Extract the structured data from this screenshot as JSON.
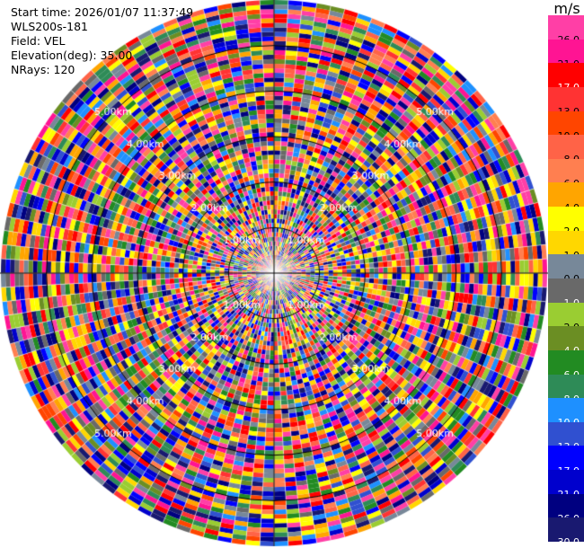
{
  "info": {
    "start_time": "Start time: 2026/01/07 11:37:49",
    "instrument": "WLS200s-181",
    "field": "Field: VEL",
    "elevation": "Elevation(deg): 35.00",
    "nrays": "NRays: 120"
  },
  "chart_data": {
    "type": "heatmap",
    "subtype": "polar_ppi",
    "field": "VEL",
    "n_rays": 120,
    "range_unit": "km",
    "max_range_km": 6.0,
    "ring_labels": [
      "1.00km",
      "2.00km",
      "3.00km",
      "4.00km",
      "5.00km"
    ],
    "colorbar": {
      "unit": "m/s",
      "ticks": [
        "26.0",
        "21.0",
        "17.0",
        "13.0",
        "10.0",
        "8.0",
        "6.0",
        "4.0",
        "2.0",
        "1.0",
        "0.0",
        "-1.0",
        "-2.0",
        "-4.0",
        "-6.0",
        "-8.0",
        "-10.0",
        "-13.0",
        "-17.0",
        "-21.0",
        "-26.0",
        "-30.0"
      ],
      "colors": [
        "#ff3fa6",
        "#ff1493",
        "#ff0000",
        "#ff3333",
        "#ff4500",
        "#ff6347",
        "#ff7f50",
        "#ffa500",
        "#ffff00",
        "#ffd700",
        "#778899",
        "#696969",
        "#9acd32",
        "#6b8e23",
        "#228b22",
        "#2e8b57",
        "#1e90ff",
        "#3050d0",
        "#0000ff",
        "#0000cd",
        "#000080",
        "#191970"
      ]
    }
  }
}
